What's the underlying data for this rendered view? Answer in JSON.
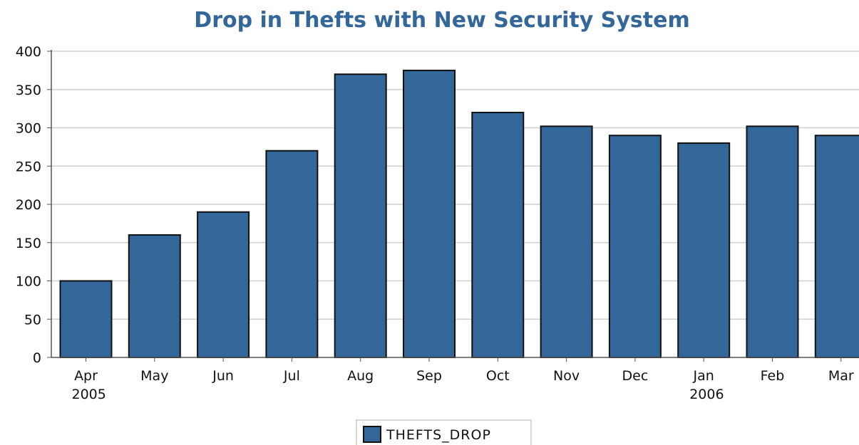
{
  "chart_data": {
    "type": "bar",
    "title": "Drop in Thefts with New Security System",
    "xlabel": "",
    "ylabel": "",
    "categories": [
      "Apr",
      "May",
      "Jun",
      "Jul",
      "Aug",
      "Sep",
      "Oct",
      "Nov",
      "Dec",
      "Jan",
      "Feb",
      "Mar"
    ],
    "year_labels": [
      {
        "category": "Apr",
        "label": "2005"
      },
      {
        "category": "Jan",
        "label": "2006"
      }
    ],
    "series": [
      {
        "name": "THEFTS_DROP",
        "color": "#336699",
        "values": [
          100,
          160,
          190,
          270,
          370,
          375,
          320,
          302,
          290,
          280,
          302,
          290
        ]
      }
    ],
    "ylim": [
      0,
      400
    ],
    "yticks": [
      0,
      50,
      100,
      150,
      200,
      250,
      300,
      350,
      400
    ],
    "grid": true,
    "legend": "bottom-center",
    "colors": {
      "title": "#336699",
      "bar": "#336699",
      "bar_outline": "#111111",
      "grid": "#d0d0d0",
      "axis": "#555555"
    }
  }
}
